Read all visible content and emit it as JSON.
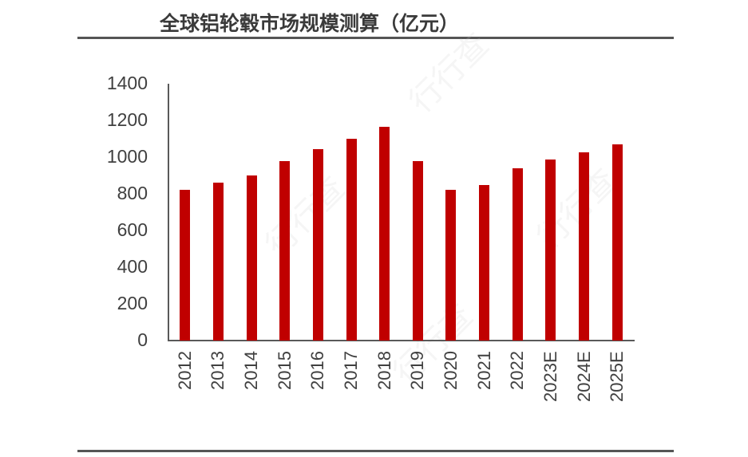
{
  "chart_data": {
    "type": "bar",
    "title": "全球铝轮毂市场规模测算（亿元）",
    "xlabel": "",
    "ylabel": "",
    "ylim": [
      0,
      1400
    ],
    "yticks": [
      0,
      200,
      400,
      600,
      800,
      1000,
      1200,
      1400
    ],
    "grid": false,
    "legend": null,
    "categories": [
      "2012",
      "2013",
      "2014",
      "2015",
      "2016",
      "2017",
      "2018",
      "2019",
      "2020",
      "2021",
      "2022",
      "2023E",
      "2024E",
      "2025E"
    ],
    "values": [
      820,
      860,
      900,
      980,
      1045,
      1100,
      1165,
      980,
      820,
      850,
      940,
      985,
      1025,
      1070
    ],
    "bar_color": "#c00000"
  },
  "watermark": "行行查"
}
